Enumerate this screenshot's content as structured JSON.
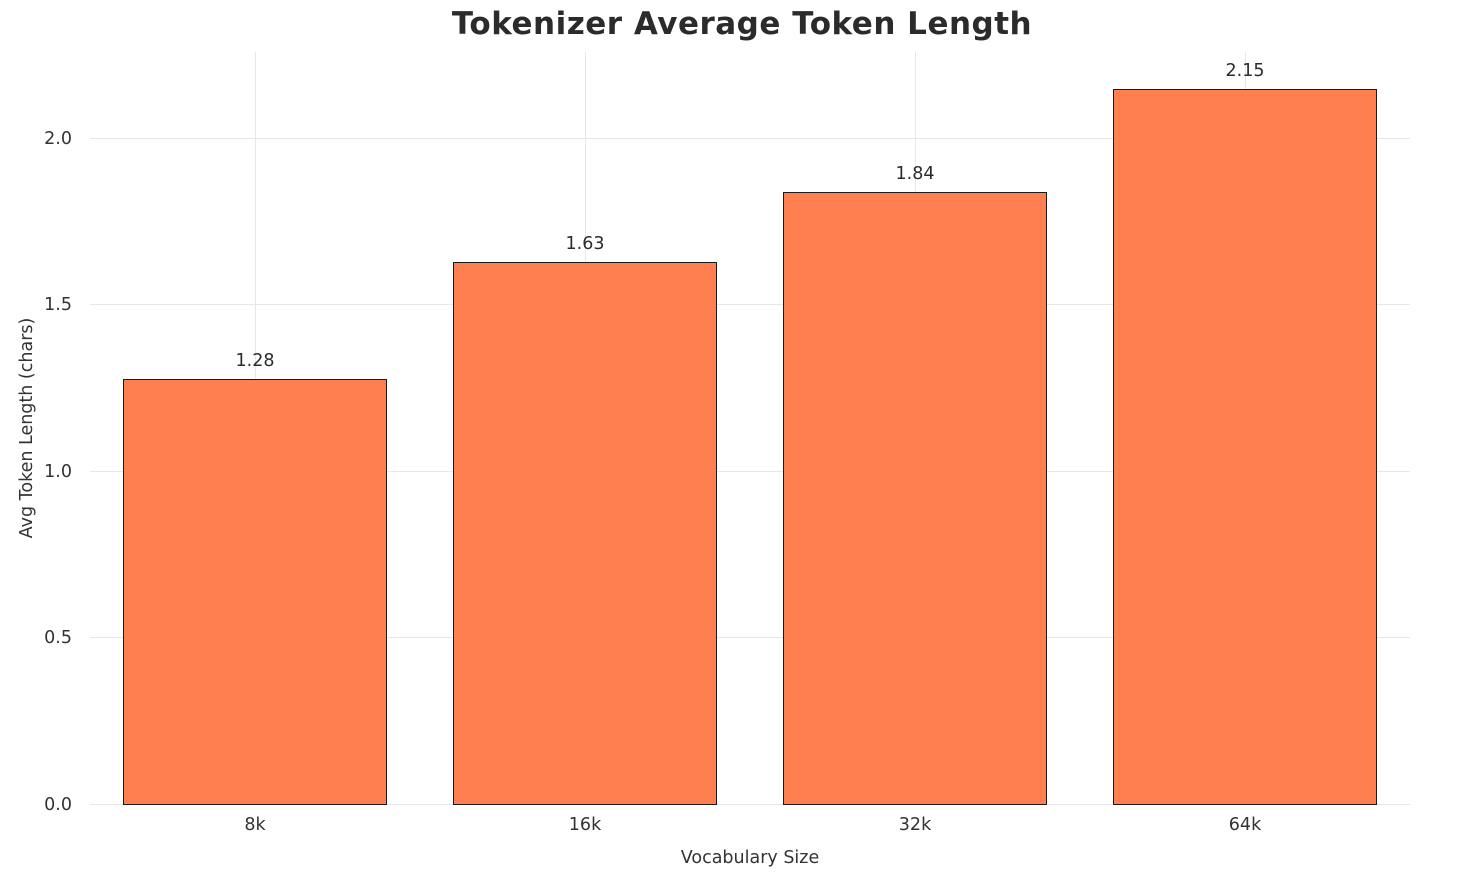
{
  "chart_data": {
    "type": "bar",
    "title": "Tokenizer Average Token Length",
    "xlabel": "Vocabulary Size",
    "ylabel": "Avg Token Length (chars)",
    "categories": [
      "8k",
      "16k",
      "32k",
      "64k"
    ],
    "values": [
      1.28,
      1.63,
      1.84,
      2.15
    ],
    "value_labels": [
      "1.28",
      "1.63",
      "1.84",
      "2.15"
    ],
    "ylim": [
      0,
      2.26
    ],
    "yticks": [
      0.0,
      0.5,
      1.0,
      1.5,
      2.0
    ],
    "ytick_labels": [
      "0.0",
      "0.5",
      "1.0",
      "1.5",
      "2.0"
    ],
    "grid": true,
    "legend": "none",
    "bar_width_fraction": 0.8,
    "colors": {
      "bar_fill": "#FF7F50",
      "bar_edge": "#1a1a1a",
      "grid": "#e7e7e7",
      "title_text": "#2b2b2b",
      "axis_text": "#333333",
      "background": "#ffffff"
    }
  }
}
